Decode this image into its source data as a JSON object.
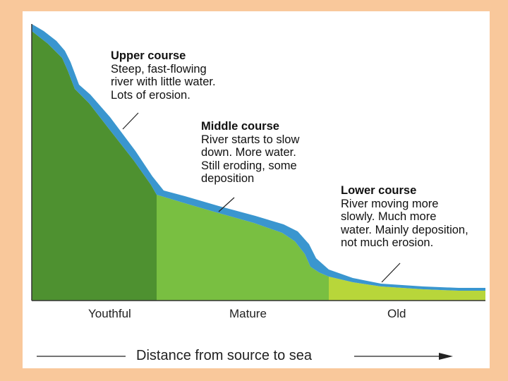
{
  "annotations": {
    "upper": {
      "title": "Upper course",
      "body": "Steep, fast-flowing\nriver with little water.\nLots of erosion."
    },
    "middle": {
      "title": "Middle course",
      "body": "River starts to slow\ndown. More water.\nStill eroding, some\ndeposition"
    },
    "lower": {
      "title": "Lower course",
      "body": "River moving more\nslowly. Much more\nwater. Mainly deposition,\nnot much erosion."
    }
  },
  "stages": {
    "youthful": "Youthful",
    "mature": "Mature",
    "old": "Old"
  },
  "axis": {
    "title": "Distance from source to sea"
  },
  "colors": {
    "background": "#F9C89B",
    "youthful_land": "#4E9130",
    "mature_land": "#79BF41",
    "old_land": "#B8D63A",
    "water": "#3A96CF"
  }
}
